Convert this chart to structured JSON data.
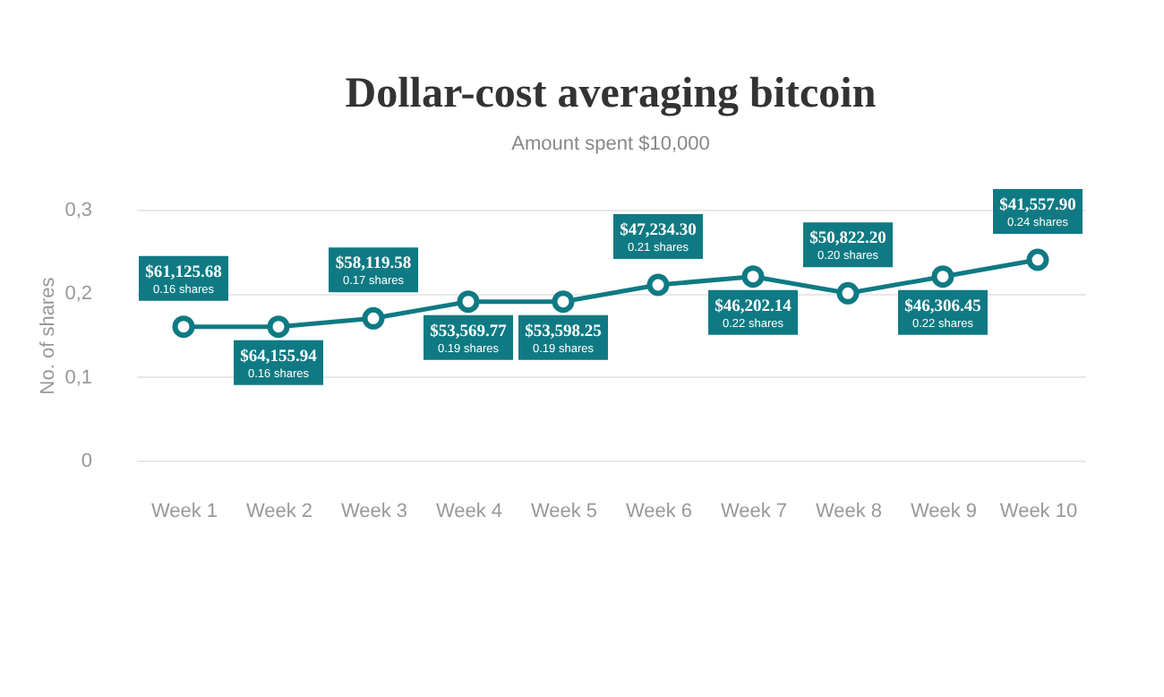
{
  "chart_data": {
    "type": "line",
    "title": "Dollar-cost averaging bitcoin",
    "subtitle": "Amount spent $10,000",
    "ylabel": "No. of shares",
    "categories": [
      "Week 1",
      "Week 2",
      "Week 3",
      "Week 4",
      "Week 5",
      "Week 6",
      "Week 7",
      "Week 8",
      "Week 9",
      "Week 10"
    ],
    "series": [
      {
        "color": "#0f7a83",
        "values": [
          0.16,
          0.16,
          0.17,
          0.19,
          0.19,
          0.21,
          0.22,
          0.2,
          0.22,
          0.24
        ],
        "value_labels": [
          "0.16 shares",
          "0.16 shares",
          "0.17 shares",
          "0.19 shares",
          "0.19 shares",
          "0.21 shares",
          "0.22 shares",
          "0.20 shares",
          "0.22 shares",
          "0.24 shares"
        ]
      }
    ],
    "annotations": [
      {
        "text": "$61,125.68",
        "x": "Week 1",
        "y": 0.16
      },
      {
        "text": "$64,155.94",
        "x": "Week 2",
        "y": 0.16
      },
      {
        "text": "$58,119.58",
        "x": "Week 3",
        "y": 0.17
      },
      {
        "text": "$53,569.77",
        "x": "Week 4",
        "y": 0.19
      },
      {
        "text": "$53,598.25",
        "x": "Week 5",
        "y": 0.19
      },
      {
        "text": "$47,234.30",
        "x": "Week 6",
        "y": 0.21
      },
      {
        "text": "$46,202.14",
        "x": "Week 7",
        "y": 0.22
      },
      {
        "text": "$50,822.20",
        "x": "Week 8",
        "y": 0.2
      },
      {
        "text": "$46,306.45",
        "x": "Week 9",
        "y": 0.22
      },
      {
        "text": "$41,557.90",
        "x": "Week 10",
        "y": 0.24
      }
    ],
    "ylim": [
      0,
      0.3
    ],
    "yticks": [
      {
        "value": 0,
        "label": "0"
      },
      {
        "value": 0.1,
        "label": "0,1"
      },
      {
        "value": 0.2,
        "label": "0,2"
      },
      {
        "value": 0.3,
        "label": "0,3"
      }
    ],
    "grid": "y",
    "marker": "circle",
    "line_style": "solid"
  }
}
